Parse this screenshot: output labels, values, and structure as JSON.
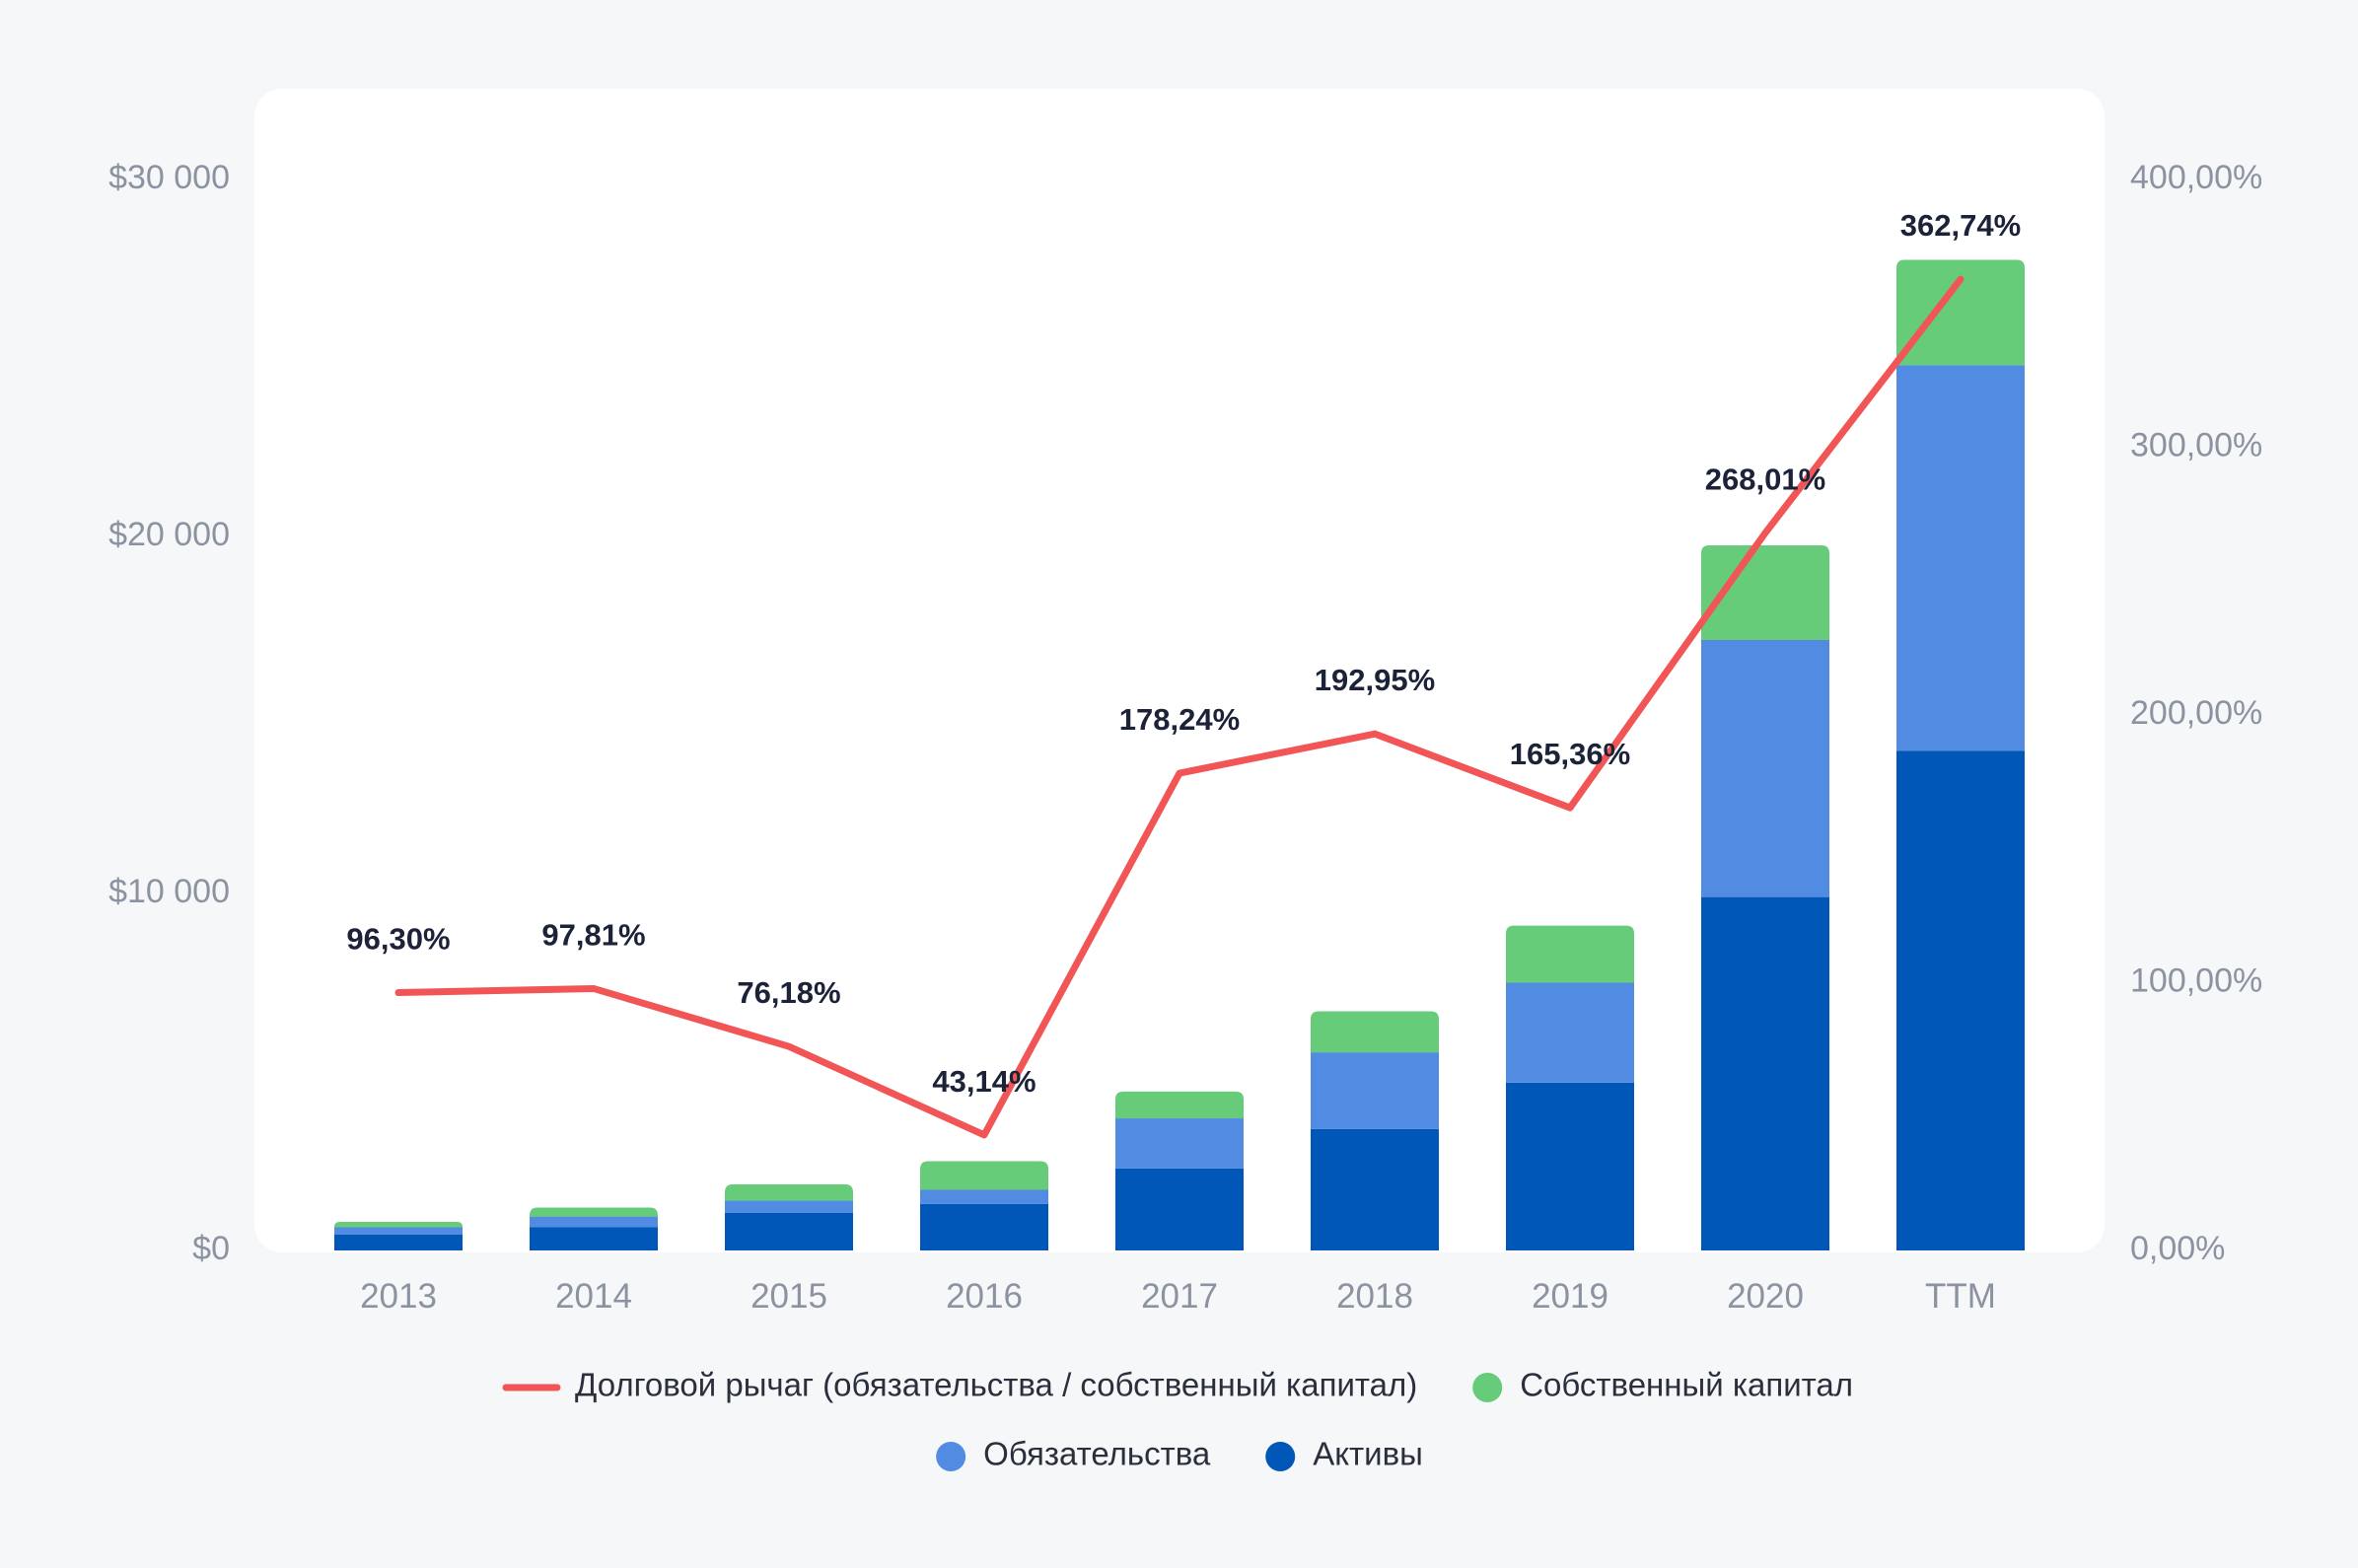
{
  "chart_data": {
    "type": "bar",
    "stacked": true,
    "categories": [
      "2013",
      "2014",
      "2015",
      "2016",
      "2017",
      "2018",
      "2019",
      "2020",
      "TTM"
    ],
    "series": [
      {
        "name": "Активы",
        "axis": "left",
        "color": "#0057b8",
        "values": [
          450,
          650,
          1050,
          1300,
          2300,
          3400,
          4700,
          9900,
          14000
        ]
      },
      {
        "name": "Обязательства",
        "axis": "left",
        "color": "#518ce2",
        "values": [
          200,
          300,
          350,
          400,
          1400,
          2150,
          2800,
          7200,
          10800
        ]
      },
      {
        "name": "Собственный капитал",
        "axis": "left",
        "color": "#66cc7a",
        "values": [
          150,
          250,
          450,
          800,
          750,
          1150,
          1600,
          2650,
          2950
        ]
      },
      {
        "name": "Долговой рычаг (обязательства / собственный капитал)",
        "type": "line",
        "axis": "right",
        "color": "#f25555",
        "values": [
          96.3,
          97.81,
          76.18,
          43.14,
          178.24,
          192.95,
          165.36,
          268.01,
          362.74
        ],
        "labels": [
          "96,30%",
          "97,81%",
          "76,18%",
          "43,14%",
          "178,24%",
          "192,95%",
          "165,36%",
          "268,01%",
          "362,74%"
        ]
      }
    ],
    "y_left": {
      "ticks": [
        0,
        10000,
        20000,
        30000
      ],
      "tick_labels": [
        "$0",
        "$10 000",
        "$20 000",
        "$30 000"
      ],
      "lim": [
        0,
        30000
      ]
    },
    "y_right": {
      "ticks": [
        0,
        100,
        200,
        300,
        400
      ],
      "tick_labels": [
        "0,00%",
        "100,00%",
        "200,00%",
        "300,00%",
        "400,00%"
      ],
      "lim": [
        0,
        400
      ]
    },
    "grid": false,
    "legend_position": "bottom",
    "legend": [
      [
        "Долговой рычаг (обязательства / собственный капитал)",
        "Собственный капитал"
      ],
      [
        "Обязательства",
        "Активы"
      ]
    ]
  }
}
